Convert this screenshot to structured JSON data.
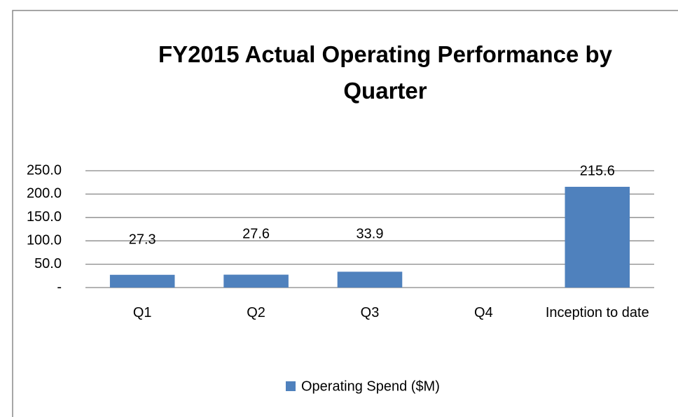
{
  "chart_data": {
    "type": "bar",
    "title": "FY2015 Actual Operating Performance by Quarter",
    "categories": [
      "Q1",
      "Q2",
      "Q3",
      "Q4",
      "Inception to date"
    ],
    "series": [
      {
        "name": "Operating Spend ($M)",
        "color": "#4f81bd",
        "values": [
          27.3,
          27.6,
          33.9,
          null,
          215.6
        ]
      }
    ],
    "ylim": [
      0,
      250
    ],
    "yticks": [
      {
        "value": 0,
        "label": "-"
      },
      {
        "value": 50,
        "label": "50.0"
      },
      {
        "value": 100,
        "label": "100.0"
      },
      {
        "value": 150,
        "label": "150.0"
      },
      {
        "value": 200,
        "label": "200.0"
      },
      {
        "value": 250,
        "label": "250.0"
      }
    ],
    "grid": true,
    "legend": "bottom"
  }
}
